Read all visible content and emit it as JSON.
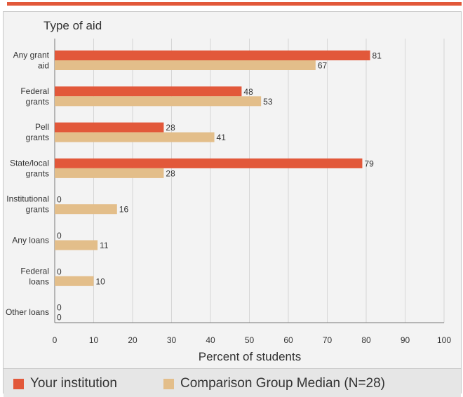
{
  "colors": {
    "your_institution": "#e2583a",
    "comparison": "#e3be8a",
    "text": "#333333",
    "grid": "#d6d6d6",
    "axis": "#777777"
  },
  "chart_data": {
    "type": "bar",
    "orientation": "horizontal",
    "title": "Type of aid",
    "xlabel": "Percent of students",
    "xlim": [
      0,
      100
    ],
    "xticks": [
      0,
      10,
      20,
      30,
      40,
      50,
      60,
      70,
      80,
      90,
      100
    ],
    "grid": true,
    "categories": [
      [
        "Any grant",
        "aid"
      ],
      [
        "Federal",
        "grants"
      ],
      [
        "Pell",
        "grants"
      ],
      [
        "State/local",
        "grants"
      ],
      [
        "Institutional",
        "grants"
      ],
      [
        "Any loans"
      ],
      [
        "Federal",
        "loans"
      ],
      [
        "Other loans"
      ]
    ],
    "series": [
      {
        "name": "Your institution",
        "values": [
          81,
          48,
          28,
          79,
          0,
          0,
          0,
          0
        ]
      },
      {
        "name": "Comparison Group Median (N=28)",
        "values": [
          67,
          53,
          41,
          28,
          16,
          11,
          10,
          0
        ]
      }
    ],
    "legend_position": "bottom"
  }
}
